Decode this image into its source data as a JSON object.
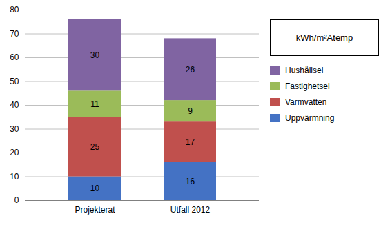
{
  "chart_data": {
    "type": "bar",
    "stacked": true,
    "categories": [
      "Projekterat",
      "Utfall 2012"
    ],
    "series": [
      {
        "name": "Uppvärmning",
        "values": [
          10,
          16
        ],
        "color": "#4472C4"
      },
      {
        "name": "Varmvatten",
        "values": [
          25,
          17
        ],
        "color": "#C0504D"
      },
      {
        "name": "Fastighetsel",
        "values": [
          11,
          9
        ],
        "color": "#9BBB59"
      },
      {
        "name": "Hushållsel",
        "values": [
          30,
          26
        ],
        "color": "#8064A2"
      }
    ],
    "ylim": [
      0,
      80
    ],
    "yticks": [
      0,
      10,
      20,
      30,
      40,
      50,
      60,
      70,
      80
    ],
    "grid": true,
    "data_labels": true,
    "legend": "right",
    "annotations": [
      "kWh/m²Atemp"
    ]
  }
}
